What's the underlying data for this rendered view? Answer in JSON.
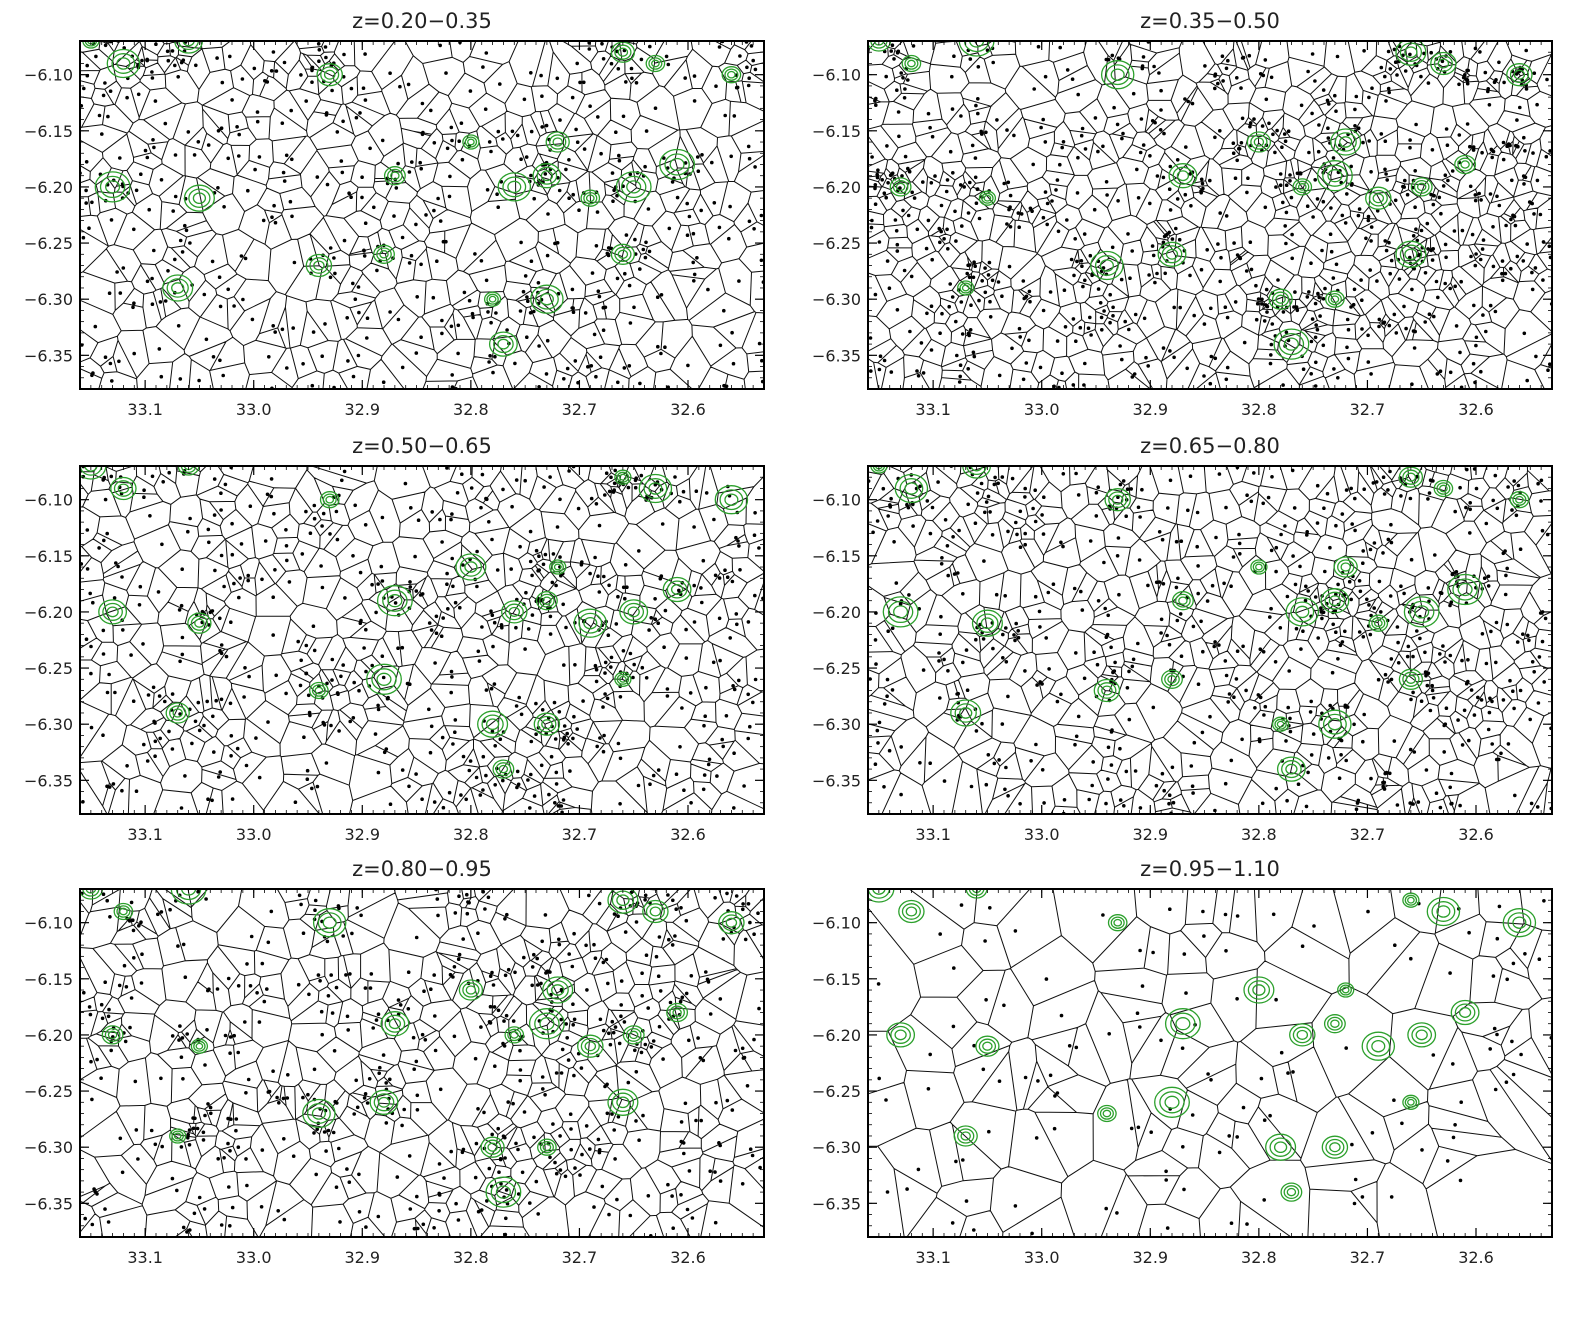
{
  "chart_data": [
    {
      "type": "scatter",
      "title": "z=0.20−0.35",
      "xlim": [
        33.16,
        32.53
      ],
      "ylim": [
        -6.38,
        -6.07
      ],
      "xticks": [
        "33.1",
        "33.0",
        "32.9",
        "32.8",
        "32.7",
        "32.6"
      ],
      "yticks": [
        "−6.10",
        "−6.15",
        "−6.20",
        "−6.25",
        "−6.30",
        "−6.35"
      ],
      "overlay": "voronoi tessellation",
      "contour_color": "#2ca02c"
    },
    {
      "type": "scatter",
      "title": "z=0.35−0.50",
      "xlim": [
        33.16,
        32.53
      ],
      "ylim": [
        -6.38,
        -6.07
      ],
      "xticks": [
        "33.1",
        "33.0",
        "32.9",
        "32.8",
        "32.7",
        "32.6"
      ],
      "yticks": [
        "−6.10",
        "−6.15",
        "−6.20",
        "−6.25",
        "−6.30",
        "−6.35"
      ],
      "overlay": "voronoi tessellation",
      "contour_color": "#2ca02c"
    },
    {
      "type": "scatter",
      "title": "z=0.50−0.65",
      "xlim": [
        33.16,
        32.53
      ],
      "ylim": [
        -6.38,
        -6.07
      ],
      "xticks": [
        "33.1",
        "33.0",
        "32.9",
        "32.8",
        "32.7",
        "32.6"
      ],
      "yticks": [
        "−6.10",
        "−6.15",
        "−6.20",
        "−6.25",
        "−6.30",
        "−6.35"
      ],
      "overlay": "voronoi tessellation",
      "contour_color": "#2ca02c"
    },
    {
      "type": "scatter",
      "title": "z=0.65−0.80",
      "xlim": [
        33.16,
        32.53
      ],
      "ylim": [
        -6.38,
        -6.07
      ],
      "xticks": [
        "33.1",
        "33.0",
        "32.9",
        "32.8",
        "32.7",
        "32.6"
      ],
      "yticks": [
        "−6.10",
        "−6.15",
        "−6.20",
        "−6.25",
        "−6.30",
        "−6.35"
      ],
      "overlay": "voronoi tessellation",
      "contour_color": "#2ca02c"
    },
    {
      "type": "scatter",
      "title": "z=0.80−0.95",
      "xlim": [
        33.16,
        32.53
      ],
      "ylim": [
        -6.38,
        -6.07
      ],
      "xticks": [
        "33.1",
        "33.0",
        "32.9",
        "32.8",
        "32.7",
        "32.6"
      ],
      "yticks": [
        "−6.10",
        "−6.15",
        "−6.20",
        "−6.25",
        "−6.30",
        "−6.35"
      ],
      "overlay": "voronoi tessellation",
      "contour_color": "#2ca02c"
    },
    {
      "type": "scatter",
      "title": "z=0.95−1.10",
      "xlim": [
        33.16,
        32.53
      ],
      "ylim": [
        -6.38,
        -6.07
      ],
      "xticks": [
        "33.1",
        "33.0",
        "32.9",
        "32.8",
        "32.7",
        "32.6"
      ],
      "yticks": [
        "−6.10",
        "−6.15",
        "−6.20",
        "−6.25",
        "−6.30",
        "−6.35"
      ],
      "overlay": "voronoi tessellation",
      "contour_color": "#2ca02c"
    }
  ],
  "contour_centers": [
    [
      33.15,
      -6.07
    ],
    [
      33.12,
      -6.09
    ],
    [
      33.06,
      -6.07
    ],
    [
      32.66,
      -6.08
    ],
    [
      32.63,
      -6.09
    ],
    [
      33.13,
      -6.2
    ],
    [
      33.05,
      -6.21
    ],
    [
      32.93,
      -6.1
    ],
    [
      32.87,
      -6.19
    ],
    [
      32.8,
      -6.16
    ],
    [
      32.76,
      -6.2
    ],
    [
      32.73,
      -6.19
    ],
    [
      32.72,
      -6.16
    ],
    [
      32.69,
      -6.21
    ],
    [
      32.65,
      -6.2
    ],
    [
      33.07,
      -6.29
    ],
    [
      32.94,
      -6.27
    ],
    [
      32.88,
      -6.26
    ],
    [
      32.78,
      -6.3
    ],
    [
      32.73,
      -6.3
    ],
    [
      32.77,
      -6.34
    ],
    [
      32.66,
      -6.26
    ],
    [
      32.56,
      -6.1
    ],
    [
      32.61,
      -6.18
    ]
  ]
}
